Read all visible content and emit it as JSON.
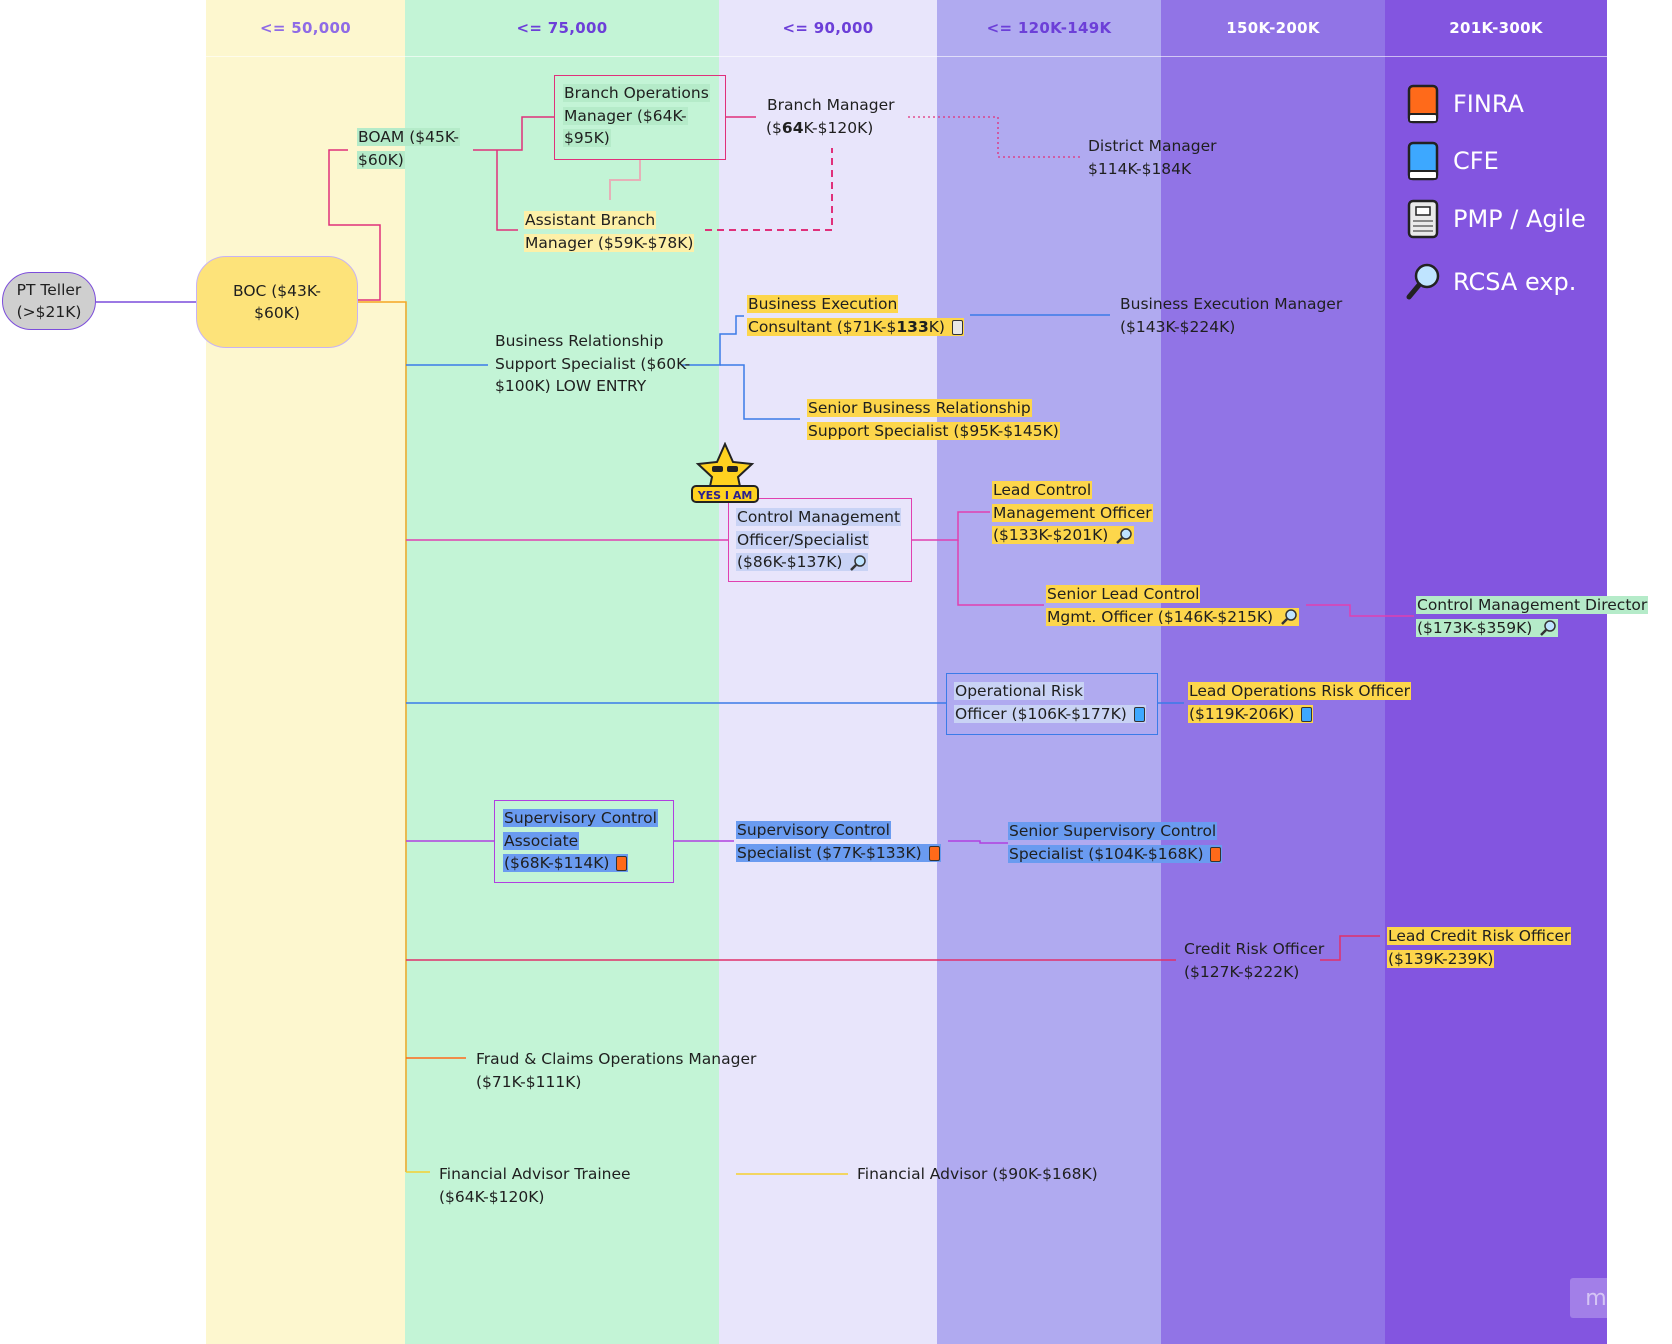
{
  "colors": {
    "col1": "#fdf7cf",
    "col2": "#c3f4d6",
    "col3": "#e8e5fb",
    "col4": "#b0aaf0",
    "col5": "#9174e6",
    "col6": "#8355e0",
    "accent_text": "#6c3fd8"
  },
  "columns": [
    {
      "label": "<= 50,000"
    },
    {
      "label": "<= 75,000"
    },
    {
      "label": "<= 90,000"
    },
    {
      "label": "<= 120K-149K"
    },
    {
      "label": "150K-200K"
    },
    {
      "label": "201K-300K"
    }
  ],
  "legend": [
    {
      "label": "FINRA",
      "icon": "orange-book-icon"
    },
    {
      "label": "CFE",
      "icon": "blue-book-icon"
    },
    {
      "label": "PMP / Agile",
      "icon": "notebook-icon"
    },
    {
      "label": "RCSA exp.",
      "icon": "magnifier-icon"
    }
  ],
  "badge": {
    "label": "YES I AM",
    "icon": "star-sunglasses-sticker"
  },
  "watermark": "miro",
  "nodes": {
    "pt_teller": {
      "line1": "PT Teller",
      "line2": "(>$21K)"
    },
    "boc": {
      "line1": "BOC ($43K-",
      "line2": "$60K)"
    },
    "boam": {
      "line1": "BOAM ($45K-",
      "line2": "$60K)"
    },
    "branch_ops": {
      "line1": "Branch Operations",
      "line2": "Manager ($64K-",
      "line3": "$95K)"
    },
    "branch_mgr": {
      "line1": "Branch Manager",
      "line2_a": "($",
      "line2_b": "64",
      "line2_c": "K-$120K)"
    },
    "district_mgr": {
      "line1": "District Manager",
      "line2": "$114K-$184K"
    },
    "asst_branch": {
      "line1": "Assistant Branch",
      "line2": "Manager ($59K-$78K)"
    },
    "brss": {
      "line1": "Business Relationship",
      "line2": "Support Specialist ($60K-",
      "line3": "$100K) LOW ENTRY"
    },
    "bec": {
      "line1": "Business Execution",
      "line2_a": "Consultant ($71K-$",
      "line2_b": "133",
      "line2_c": "K)"
    },
    "bem": {
      "line1": "Business Execution Manager",
      "line2": "($143K-$224K)"
    },
    "sbrss": {
      "line1": "Senior Business Relationship",
      "line2": "Support Specialist ($95K-$145K)"
    },
    "cmo": {
      "line1": "Control Management",
      "line2": "Officer/Specialist",
      "line3": "($86K-$137K)"
    },
    "lcmo": {
      "line1": "Lead Control",
      "line2": "Management Officer",
      "line3": "($133K-$201K)"
    },
    "slcmo": {
      "line1": "Senior Lead Control",
      "line2": "Mgmt. Officer ($146K-$215K)"
    },
    "cmd": {
      "line1": "Control Management Director",
      "line2": "($173K-$359K)"
    },
    "oro": {
      "line1": "Operational Risk",
      "line2": "Officer ($106K-$177K)"
    },
    "loro": {
      "line1": "Lead Operations Risk Officer",
      "line2": "($119K-206K)"
    },
    "sca": {
      "line1": "Supervisory Control",
      "line2": "Associate",
      "line3": "($68K-$114K)"
    },
    "scs": {
      "line1": "Supervisory Control",
      "line2": "Specialist ($77K-$133K)"
    },
    "sscs": {
      "line1": "Senior Supervisory Control",
      "line2": "Specialist ($104K-$168K)"
    },
    "cro": {
      "line1": "Credit Risk Officer",
      "line2": "($127K-$222K)"
    },
    "lcro": {
      "line1": "Lead Credit Risk Officer",
      "line2": "($139K-239K)"
    },
    "fcom": {
      "line1": "Fraud & Claims Operations Manager",
      "line2": "($71K-$111K)"
    },
    "fat": {
      "line1": "Financial Advisor Trainee",
      "line2": "($64K-$120K)"
    },
    "fa": {
      "line1": "Financial Advisor ($90K-$168K)"
    }
  }
}
